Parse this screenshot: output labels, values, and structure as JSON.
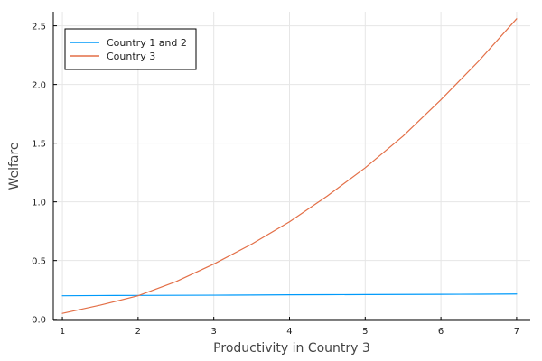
{
  "chart_data": {
    "type": "line",
    "title": "",
    "xlabel": "Productivity in Country 3",
    "ylabel": "Welfare",
    "xlim": [
      0.88,
      7.18
    ],
    "ylim": [
      -0.01,
      2.62
    ],
    "xticks": [
      1,
      2,
      3,
      4,
      5,
      6,
      7
    ],
    "yticks": [
      0.0,
      0.5,
      1.0,
      1.5,
      2.0,
      2.5
    ],
    "xtick_labels": [
      "1",
      "2",
      "3",
      "4",
      "5",
      "6",
      "7"
    ],
    "ytick_labels": [
      "0.0",
      "0.5",
      "1.0",
      "1.5",
      "2.0",
      "2.5"
    ],
    "grid": true,
    "legend_position": "top-left",
    "series": [
      {
        "name": "Country 1 and 2",
        "color": "#009AFA",
        "x": [
          1.0,
          1.5,
          2.0,
          2.5,
          3.0,
          3.5,
          4.0,
          4.5,
          5.0,
          5.5,
          6.0,
          6.5,
          7.0
        ],
        "values": [
          0.2,
          0.202,
          0.203,
          0.204,
          0.205,
          0.206,
          0.208,
          0.209,
          0.21,
          0.211,
          0.212,
          0.213,
          0.215
        ]
      },
      {
        "name": "Country 3",
        "color": "#E36F47",
        "x": [
          1.0,
          1.5,
          2.0,
          2.5,
          3.0,
          3.5,
          4.0,
          4.5,
          5.0,
          5.5,
          6.0,
          6.5,
          7.0
        ],
        "values": [
          0.05,
          0.12,
          0.2,
          0.32,
          0.47,
          0.64,
          0.83,
          1.05,
          1.29,
          1.56,
          1.87,
          2.2,
          2.56
        ]
      }
    ]
  }
}
